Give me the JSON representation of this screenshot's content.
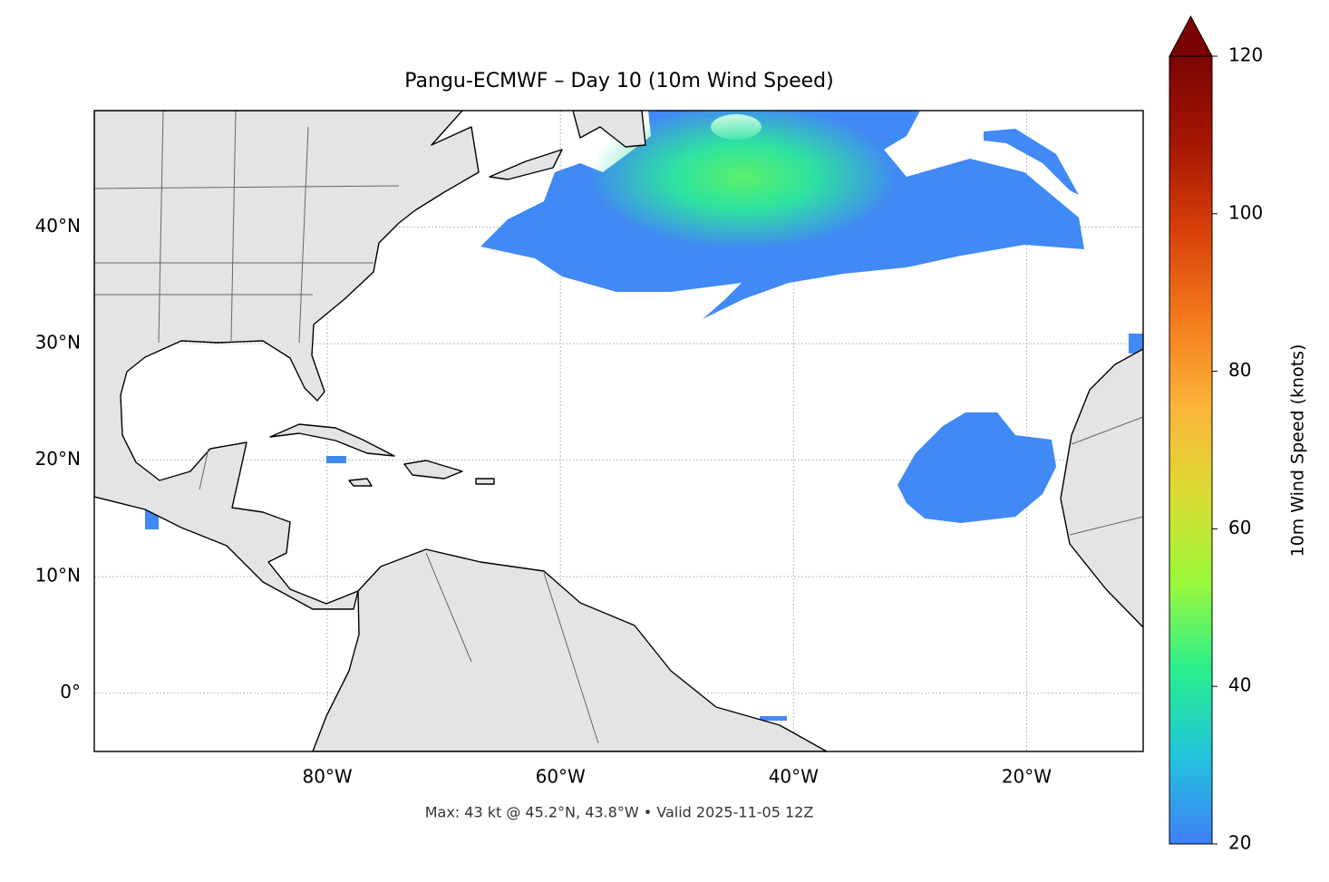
{
  "chart_data": {
    "type": "map",
    "title": "Pangu-ECMWF – Day 10 (10m Wind Speed)",
    "xlim": [
      -100,
      -10
    ],
    "ylim": [
      -5,
      50
    ],
    "xticks": [
      {
        "value": -80,
        "label": "80°W"
      },
      {
        "value": -60,
        "label": "60°W"
      },
      {
        "value": -40,
        "label": "40°W"
      },
      {
        "value": -20,
        "label": "20°W"
      }
    ],
    "yticks": [
      {
        "value": 0,
        "label": "0°"
      },
      {
        "value": 10,
        "label": "10°N"
      },
      {
        "value": 20,
        "label": "20°N"
      },
      {
        "value": 30,
        "label": "30°N"
      },
      {
        "value": 40,
        "label": "40°N"
      }
    ],
    "grid": true,
    "colorbar": {
      "label": "10m Wind Speed (knots)",
      "lim": [
        20,
        120
      ],
      "ticks": [
        20,
        40,
        60,
        80,
        100,
        120
      ],
      "colors": [
        "#3f7ff6",
        "#22c4dc",
        "#2aef8c",
        "#9cf83a",
        "#dcdc33",
        "#fbb33a",
        "#f47a1c",
        "#d8400a",
        "#a51602",
        "#7a0403"
      ]
    },
    "annotation": "Max: 43 kt @ 45.2°N, 43.8°W • Valid 2025-11-05 12Z"
  }
}
